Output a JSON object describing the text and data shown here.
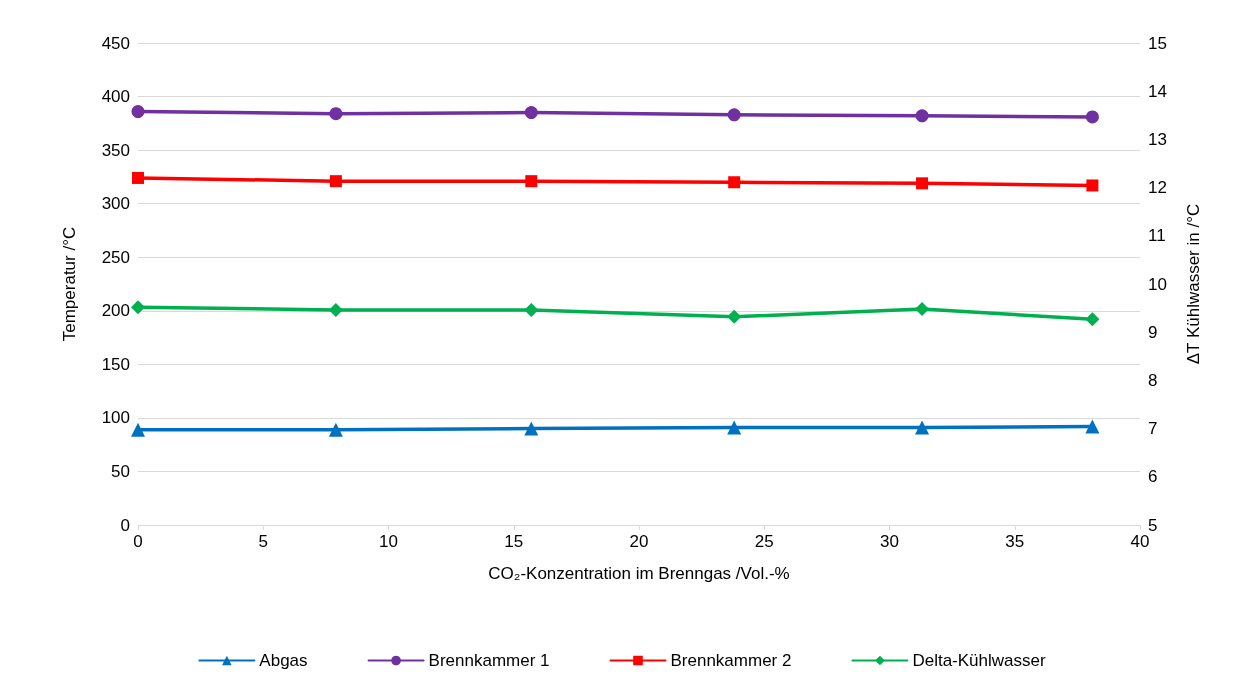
{
  "chart_data": {
    "type": "line",
    "xlabel": "CO₂-Konzentration im Brenngas /Vol.-%",
    "ylabel": "Temperatur /°C",
    "y2label": "ΔT Kühlwasser in /°C",
    "x": [
      0,
      7.9,
      15.7,
      23.8,
      31.3,
      38.1
    ],
    "series": [
      {
        "name": "Abgas",
        "color": "#0070c0",
        "marker": "triangle",
        "values": [
          89,
          89,
          90,
          91,
          91,
          92
        ]
      },
      {
        "name": "Brennkammer 1",
        "color": "#7030a0",
        "marker": "circle",
        "values": [
          386,
          384,
          385,
          383,
          382,
          381
        ]
      },
      {
        "name": "Brennkammer 2",
        "color": "#ff0000",
        "marker": "square",
        "values": [
          324,
          321,
          321,
          320,
          319,
          317
        ]
      },
      {
        "name": "Delta-Kühlwasser",
        "color": "#00b050",
        "marker": "diamond",
        "axis": "y2",
        "values": [
          9.52,
          9.46,
          9.46,
          9.32,
          9.48,
          9.27
        ]
      }
    ],
    "xlim": [
      0,
      40
    ],
    "xticks": [
      0,
      5,
      10,
      15,
      20,
      25,
      30,
      35,
      40
    ],
    "ylim": [
      0,
      450
    ],
    "yticks": [
      0,
      50,
      100,
      150,
      200,
      250,
      300,
      350,
      400,
      450
    ],
    "y2lim": [
      5,
      15
    ],
    "y2ticks": [
      5,
      6,
      7,
      8,
      9,
      10,
      11,
      12,
      13,
      14,
      15
    ],
    "grid": "y",
    "legend": "bottom",
    "line_style": "solid"
  }
}
